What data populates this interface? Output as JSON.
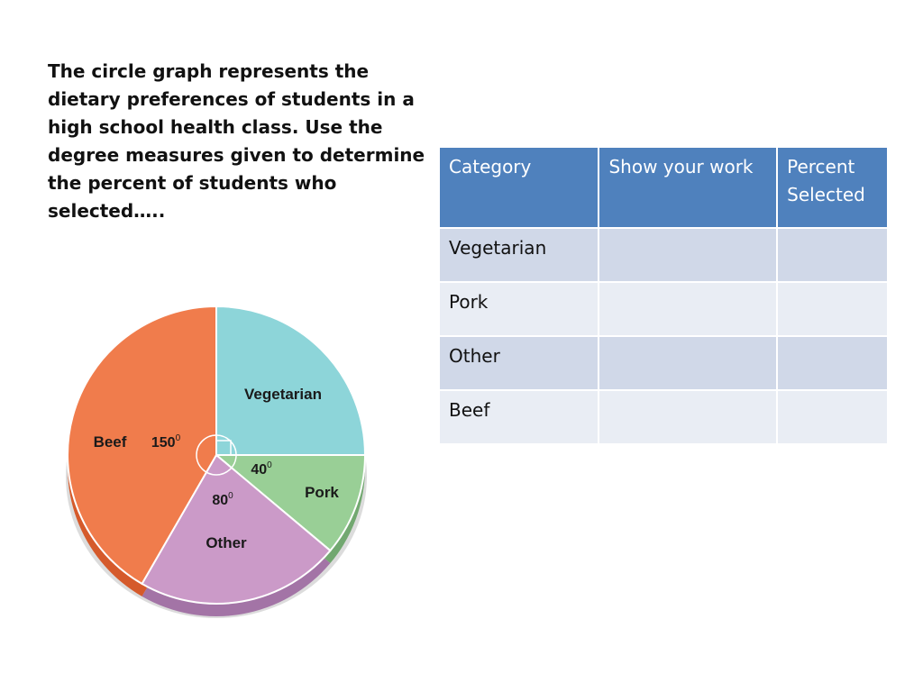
{
  "prompt": {
    "lines": [
      "The circle graph represents the",
      "dietary preferences of students in a",
      "high school health class. Use the",
      "degree measures given to determine",
      "the percent of students who",
      "selected….."
    ]
  },
  "chart_data": {
    "type": "pie",
    "title": "",
    "slices": [
      {
        "label": "Vegetarian",
        "degrees": 90,
        "angle_label": "",
        "color": "#8dd5d9",
        "side_color": "#6fb5ba"
      },
      {
        "label": "Pork",
        "degrees": 40,
        "angle_label": "40",
        "color": "#99cf96",
        "side_color": "#72a870"
      },
      {
        "label": "Other",
        "degrees": 80,
        "angle_label": "80",
        "color": "#cb9ac8",
        "side_color": "#a374a6"
      },
      {
        "label": "Beef",
        "degrees": 150,
        "angle_label": "150",
        "color": "#f07c4c",
        "side_color": "#d55a2b"
      }
    ],
    "degree_symbol": "0"
  },
  "table": {
    "headers": [
      "Category",
      "Show your work",
      "Percent Selected"
    ],
    "rows": [
      [
        "Vegetarian",
        "",
        ""
      ],
      [
        "Pork",
        "",
        ""
      ],
      [
        "Other",
        "",
        ""
      ],
      [
        "Beef",
        "",
        ""
      ]
    ]
  }
}
